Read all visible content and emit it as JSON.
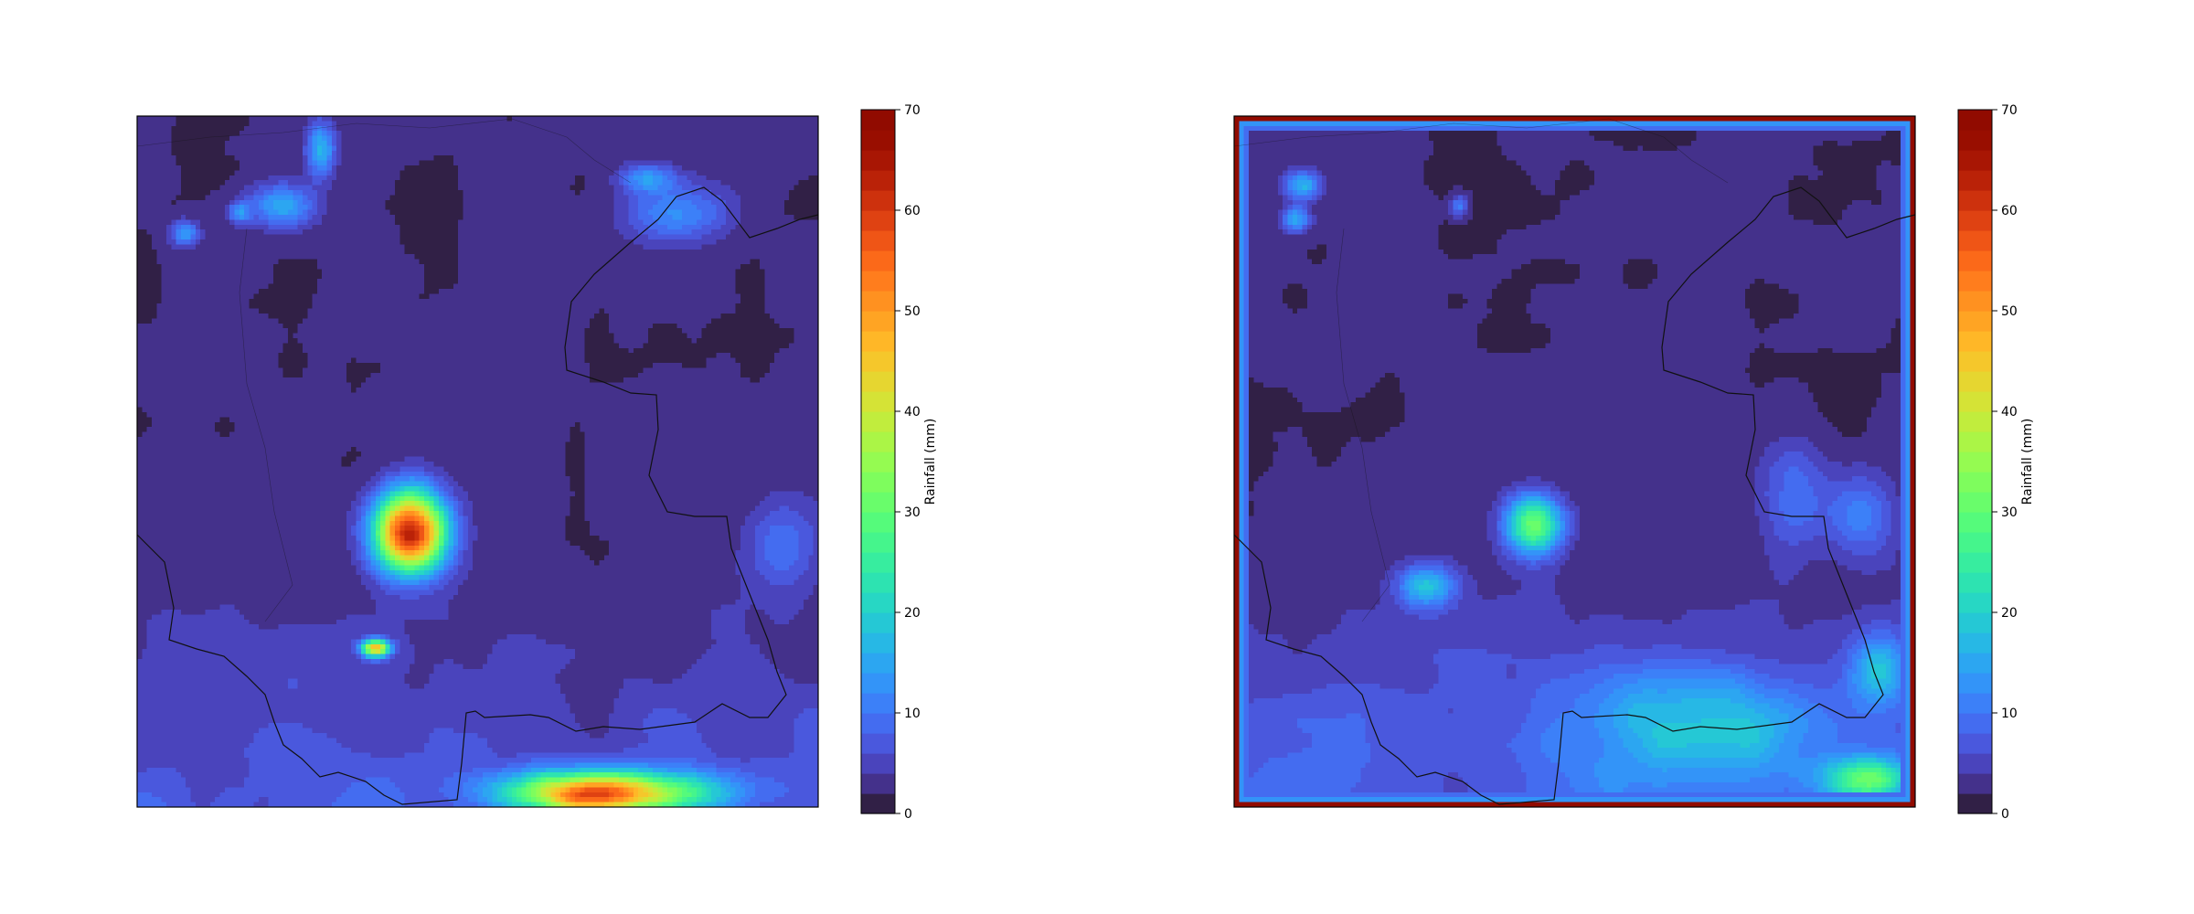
{
  "chart_data": [
    {
      "type": "heatmap",
      "title": "",
      "colorbar": {
        "label": "Rainfall (mm)",
        "ticks": [
          "0",
          "10",
          "20",
          "30",
          "40",
          "50",
          "60",
          "70"
        ],
        "vmin": 0,
        "vmax": 70,
        "levels": 35,
        "colormap": "turbo"
      },
      "grid": false,
      "coastline_overlay": true,
      "rain_cells": [
        {
          "cx": 0.4,
          "cy": 0.6,
          "rx": 0.05,
          "ry": 0.055,
          "peak": 64
        },
        {
          "cx": 0.35,
          "cy": 0.77,
          "rx": 0.02,
          "ry": 0.012,
          "peak": 40
        },
        {
          "cx": 0.69,
          "cy": 0.98,
          "rx": 0.14,
          "ry": 0.03,
          "peak": 50
        },
        {
          "cx": 0.27,
          "cy": 0.05,
          "rx": 0.02,
          "ry": 0.04,
          "peak": 14
        },
        {
          "cx": 0.21,
          "cy": 0.13,
          "rx": 0.05,
          "ry": 0.03,
          "peak": 13
        },
        {
          "cx": 0.07,
          "cy": 0.17,
          "rx": 0.02,
          "ry": 0.018,
          "peak": 12
        },
        {
          "cx": 0.15,
          "cy": 0.14,
          "rx": 0.015,
          "ry": 0.015,
          "peak": 10
        },
        {
          "cx": 0.75,
          "cy": 0.09,
          "rx": 0.04,
          "ry": 0.02,
          "peak": 12
        },
        {
          "cx": 0.79,
          "cy": 0.14,
          "rx": 0.07,
          "ry": 0.04,
          "peak": 11
        },
        {
          "cx": 0.95,
          "cy": 0.62,
          "rx": 0.05,
          "ry": 0.06,
          "peak": 7
        }
      ],
      "background_level": 1.5,
      "south_band_level": 5
    },
    {
      "type": "heatmap",
      "title": "",
      "colorbar": {
        "label": "Rainfall (mm)",
        "ticks": [
          "0",
          "10",
          "20",
          "30",
          "40",
          "50",
          "60",
          "70"
        ],
        "vmin": 0,
        "vmax": 70,
        "levels": 35,
        "colormap": "turbo"
      },
      "grid": false,
      "coastline_overlay": true,
      "border_value": 70,
      "rain_cells": [
        {
          "cx": 0.44,
          "cy": 0.59,
          "rx": 0.04,
          "ry": 0.04,
          "peak": 30
        },
        {
          "cx": 0.28,
          "cy": 0.68,
          "rx": 0.04,
          "ry": 0.03,
          "peak": 14
        },
        {
          "cx": 0.1,
          "cy": 0.1,
          "rx": 0.025,
          "ry": 0.02,
          "peak": 14
        },
        {
          "cx": 0.09,
          "cy": 0.15,
          "rx": 0.02,
          "ry": 0.018,
          "peak": 13
        },
        {
          "cx": 0.33,
          "cy": 0.13,
          "rx": 0.012,
          "ry": 0.015,
          "peak": 10
        },
        {
          "cx": 0.66,
          "cy": 0.88,
          "rx": 0.15,
          "ry": 0.08,
          "peak": 15
        },
        {
          "cx": 0.93,
          "cy": 0.96,
          "rx": 0.06,
          "ry": 0.03,
          "peak": 22
        },
        {
          "cx": 0.95,
          "cy": 0.8,
          "rx": 0.04,
          "ry": 0.05,
          "peak": 15
        },
        {
          "cx": 0.82,
          "cy": 0.55,
          "rx": 0.05,
          "ry": 0.08,
          "peak": 8
        },
        {
          "cx": 0.92,
          "cy": 0.58,
          "rx": 0.05,
          "ry": 0.06,
          "peak": 9
        }
      ],
      "background_level": 1.5,
      "south_band_level": 6
    }
  ]
}
